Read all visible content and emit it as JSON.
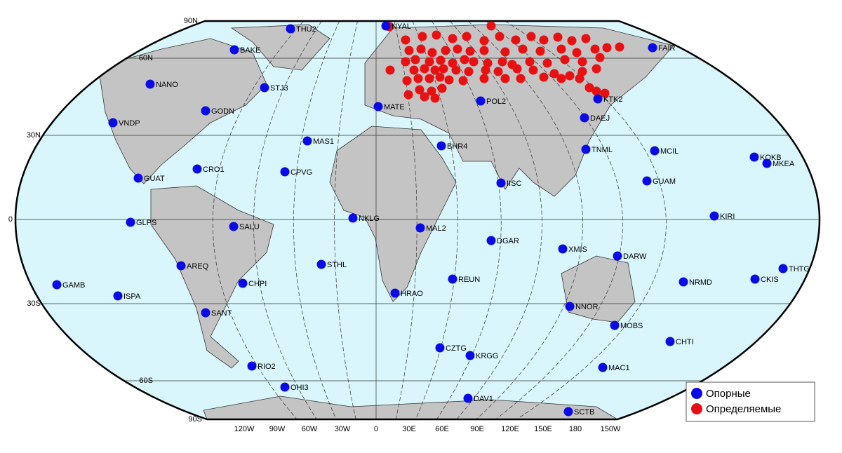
{
  "map": {
    "parallel_labels": [
      "90N",
      "60N",
      "30N",
      "0",
      "30S",
      "60S",
      "90S"
    ],
    "meridian_labels": [
      "120W",
      "90W",
      "60W",
      "30W",
      "0",
      "30E",
      "60E",
      "90E",
      "120E",
      "150E",
      "180",
      "150W"
    ],
    "stations": [
      "THU2",
      "BAKE",
      "NANO",
      "STJ3",
      "GODN",
      "VNDP",
      "MAS1",
      "CRO1",
      "CPVG",
      "GUAT",
      "GLPS",
      "SALU",
      "AREQ",
      "STHL",
      "CHPI",
      "GAMB",
      "ISPA",
      "SANT",
      "RIO2",
      "OHI3",
      "NYAL",
      "MATE",
      "BHR4",
      "POL2",
      "IISC",
      "NKLG",
      "MAL2",
      "DGAR",
      "REUN",
      "HRAO",
      "CZTG",
      "KRGG",
      "DAV1",
      "FAIR",
      "KTK2",
      "DAEJ",
      "TNML",
      "MCIL",
      "GUAM",
      "KOKB",
      "MKEA",
      "KIRI",
      "XMIS",
      "DARW",
      "NRMD",
      "CKIS",
      "THTG",
      "NNOR",
      "MOBS",
      "CHTI",
      "MAC1",
      "SCTB"
    ],
    "legend": [
      {
        "label": "Опорные",
        "color": "#0a0ae6"
      },
      {
        "label": "Определяемые",
        "color": "#e81010"
      }
    ]
  }
}
